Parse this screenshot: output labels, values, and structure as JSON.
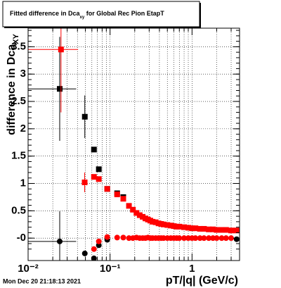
{
  "chart_data": {
    "type": "scatter",
    "title": "Fitted difference in Dca",
    "title_subscript": "xy",
    "title_rest": " for Global Rec Pion EtapT",
    "ylabel": "difference in Dca",
    "ylabel_subscript": "XY",
    "xlabel": "pT/|q| (GeV/c)",
    "footer": "Mon Dec 20 21:18:13 2021",
    "xlog": true,
    "grid": true,
    "xlim": [
      0.01,
      3.8
    ],
    "ylim": [
      -0.41,
      3.84
    ],
    "xticks": [
      {
        "value": 0.01,
        "label": "10⁻²"
      },
      {
        "value": 0.1,
        "label": "10⁻¹"
      },
      1
    ],
    "yticks": [
      {
        "value": 0,
        "label": "-0"
      },
      0.5,
      1,
      1.5,
      2,
      2.5,
      3,
      3.5
    ],
    "series": [
      {
        "color": "#000000",
        "marker": "square",
        "x": [
          0.0243,
          0.0492,
          0.0636,
          0.0729,
          0.0923,
          0.122,
          0.145
        ],
        "values": [
          2.73,
          2.22,
          1.62,
          1.26,
          0.9,
          0.82,
          0.75
        ],
        "errors": [
          0.95,
          0.39,
          null,
          null,
          null,
          null,
          null
        ],
        "xerrors": [
          0.0143,
          null,
          null,
          null,
          null,
          null,
          null
        ]
      },
      {
        "color": "#ff0000",
        "marker": "square",
        "x": [
          0.0252,
          0.049,
          0.0636,
          0.0729,
          0.0923,
          0.122,
          0.145,
          0.17,
          0.19,
          0.21,
          0.23,
          0.25,
          0.27,
          0.29,
          0.31,
          0.33,
          0.36,
          0.39,
          0.42,
          0.45,
          0.5,
          0.55,
          0.6,
          0.65,
          0.7,
          0.8,
          0.9,
          1.0,
          1.1,
          1.25,
          1.4,
          1.6,
          1.8,
          2.0,
          2.3,
          2.6,
          3.0,
          3.5
        ],
        "values": [
          3.45,
          1.02,
          1.12,
          1.08,
          0.9,
          0.8,
          0.72,
          0.59,
          0.52,
          0.46,
          0.42,
          0.39,
          0.36,
          0.34,
          0.32,
          0.3,
          0.29,
          0.27,
          0.26,
          0.25,
          0.24,
          0.23,
          0.22,
          0.21,
          0.21,
          0.2,
          0.19,
          0.18,
          0.18,
          0.17,
          0.17,
          0.16,
          0.16,
          0.15,
          0.15,
          0.15,
          0.14,
          0.14
        ],
        "errors": [
          1.15,
          0.18,
          null,
          null,
          null,
          null,
          null,
          null,
          null,
          null,
          null,
          null,
          null,
          null,
          null,
          null,
          null,
          null,
          null,
          null,
          null,
          null,
          null,
          null,
          null,
          null,
          null,
          null,
          null,
          null,
          null,
          null,
          null,
          null,
          null,
          null,
          null,
          null
        ],
        "xerrors": [
          0.0155,
          null,
          null,
          null,
          null,
          null,
          null,
          null,
          null,
          null,
          null,
          null,
          null,
          null,
          null,
          null,
          null,
          null,
          null,
          null,
          null,
          null,
          null,
          null,
          null,
          null,
          null,
          null,
          null,
          null,
          null,
          null,
          null,
          null,
          null,
          null,
          null,
          null
        ]
      },
      {
        "color": "#000000",
        "marker": "circle",
        "x": [
          0.0243,
          0.0492,
          0.0636,
          0.0729,
          0.0923,
          3.5
        ],
        "values": [
          -0.06,
          -0.28,
          -0.37,
          -0.13,
          -0.03,
          -0.02
        ],
        "errors": [
          0.55,
          null,
          null,
          null,
          null,
          null
        ],
        "xerrors": [
          0.0143,
          null,
          null,
          null,
          null,
          null
        ]
      },
      {
        "color": "#ff0000",
        "marker": "circle",
        "x": [
          0.0636,
          0.0729,
          0.0923,
          0.122,
          0.145,
          0.17,
          0.19,
          0.21,
          0.23,
          0.25,
          0.27,
          0.29,
          0.31,
          0.33,
          0.36,
          0.39,
          0.42,
          0.45,
          0.5,
          0.55,
          0.6,
          0.65,
          0.7,
          0.8,
          0.9,
          1.0,
          1.1,
          1.25,
          1.4,
          1.6,
          1.8,
          2.0,
          2.3,
          2.6,
          3.0
        ],
        "values": [
          -0.2,
          -0.06,
          0.02,
          0.01,
          0.01,
          0.0,
          0.0,
          0.01,
          0.0,
          0.0,
          0.0,
          0.01,
          0.0,
          0.0,
          0.0,
          0.0,
          0.0,
          0.0,
          0.0,
          0.0,
          0.0,
          0.0,
          0.0,
          0.0,
          0.0,
          0.0,
          0.0,
          0.0,
          0.0,
          0.0,
          0.0,
          0.0,
          0.0,
          0.0,
          0.0
        ],
        "errors": [
          null,
          null,
          null,
          null,
          null,
          null,
          null,
          null,
          null,
          null,
          null,
          null,
          null,
          null,
          null,
          null,
          null,
          null,
          null,
          null,
          null,
          null,
          null,
          null,
          null,
          null,
          null,
          null,
          null,
          null,
          null,
          null,
          null,
          null,
          null
        ],
        "xerrors": [
          null,
          null,
          null,
          null,
          null,
          null,
          null,
          null,
          null,
          null,
          null,
          null,
          null,
          null,
          null,
          null,
          null,
          null,
          null,
          null,
          null,
          null,
          null,
          null,
          null,
          null,
          null,
          null,
          null,
          null,
          null,
          null,
          null,
          null,
          null
        ]
      }
    ]
  }
}
